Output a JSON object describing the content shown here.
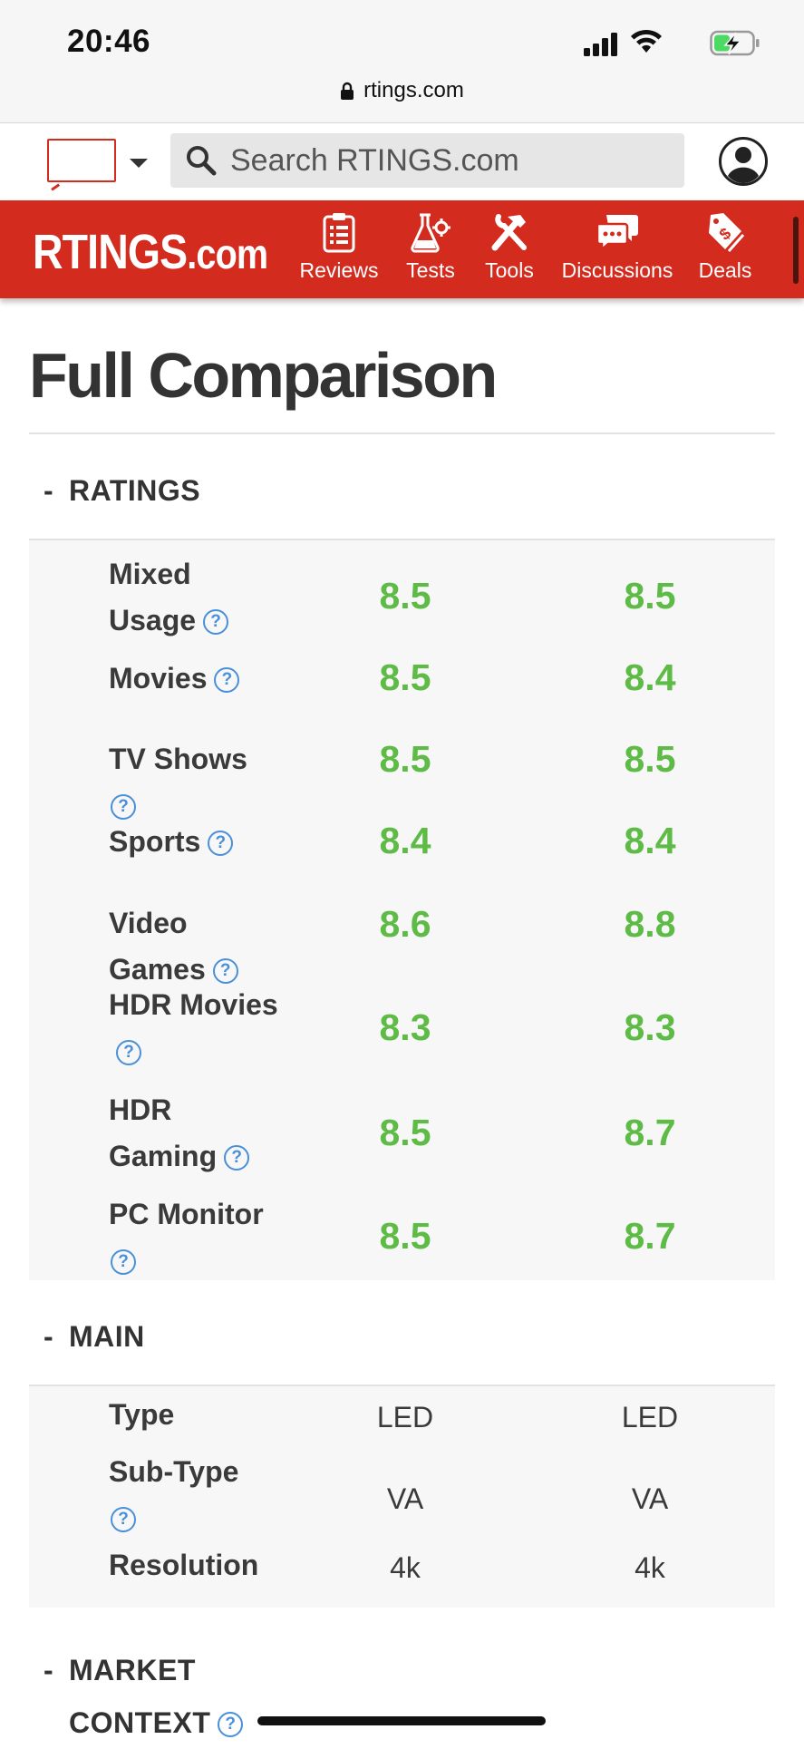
{
  "status_bar": {
    "time": "20:46"
  },
  "browser": {
    "url": "rtings.com"
  },
  "header": {
    "search_placeholder": "Search RTINGS.com"
  },
  "nav": {
    "logo_main": "RTINGS",
    "logo_suffix": ".com",
    "items": [
      {
        "label": "Reviews",
        "icon": "clipboard-icon"
      },
      {
        "label": "Tests",
        "icon": "flask-gear-icon"
      },
      {
        "label": "Tools",
        "icon": "tools-icon"
      },
      {
        "label": "Discussions",
        "icon": "chat-bubbles-icon"
      },
      {
        "label": "Deals",
        "icon": "price-tag-icon"
      }
    ]
  },
  "page": {
    "title": "Full Comparison"
  },
  "sections": {
    "ratings": {
      "title": "RATINGS",
      "rows": [
        {
          "label": "Mixed Usage",
          "v1": "8.5",
          "v2": "8.5"
        },
        {
          "label": "Movies",
          "v1": "8.5",
          "v2": "8.4"
        },
        {
          "label": "TV Shows",
          "v1": "8.5",
          "v2": "8.5"
        },
        {
          "label": "Sports",
          "v1": "8.4",
          "v2": "8.4"
        },
        {
          "label": "Video Games",
          "v1": "8.6",
          "v2": "8.8"
        },
        {
          "label": "HDR Movies",
          "v1": "8.3",
          "v2": "8.3"
        },
        {
          "label": "HDR Gaming",
          "v1": "8.5",
          "v2": "8.7"
        },
        {
          "label": "PC Monitor",
          "v1": "8.5",
          "v2": "8.7"
        }
      ]
    },
    "main": {
      "title": "MAIN",
      "rows": [
        {
          "label": "Type",
          "v1": "LED",
          "v2": "LED"
        },
        {
          "label": "Sub-Type",
          "v1": "VA",
          "v2": "VA"
        },
        {
          "label": "Resolution",
          "v1": "4k",
          "v2": "4k"
        }
      ]
    },
    "market_context": {
      "title_line1": "MARKET",
      "title_line2": "CONTEXT"
    }
  },
  "help_glyph": "?",
  "collapse_glyph": "-",
  "colors": {
    "brand_red": "#d42b1f",
    "score_green": "#5dbb46",
    "help_blue": "#4a90d9"
  }
}
